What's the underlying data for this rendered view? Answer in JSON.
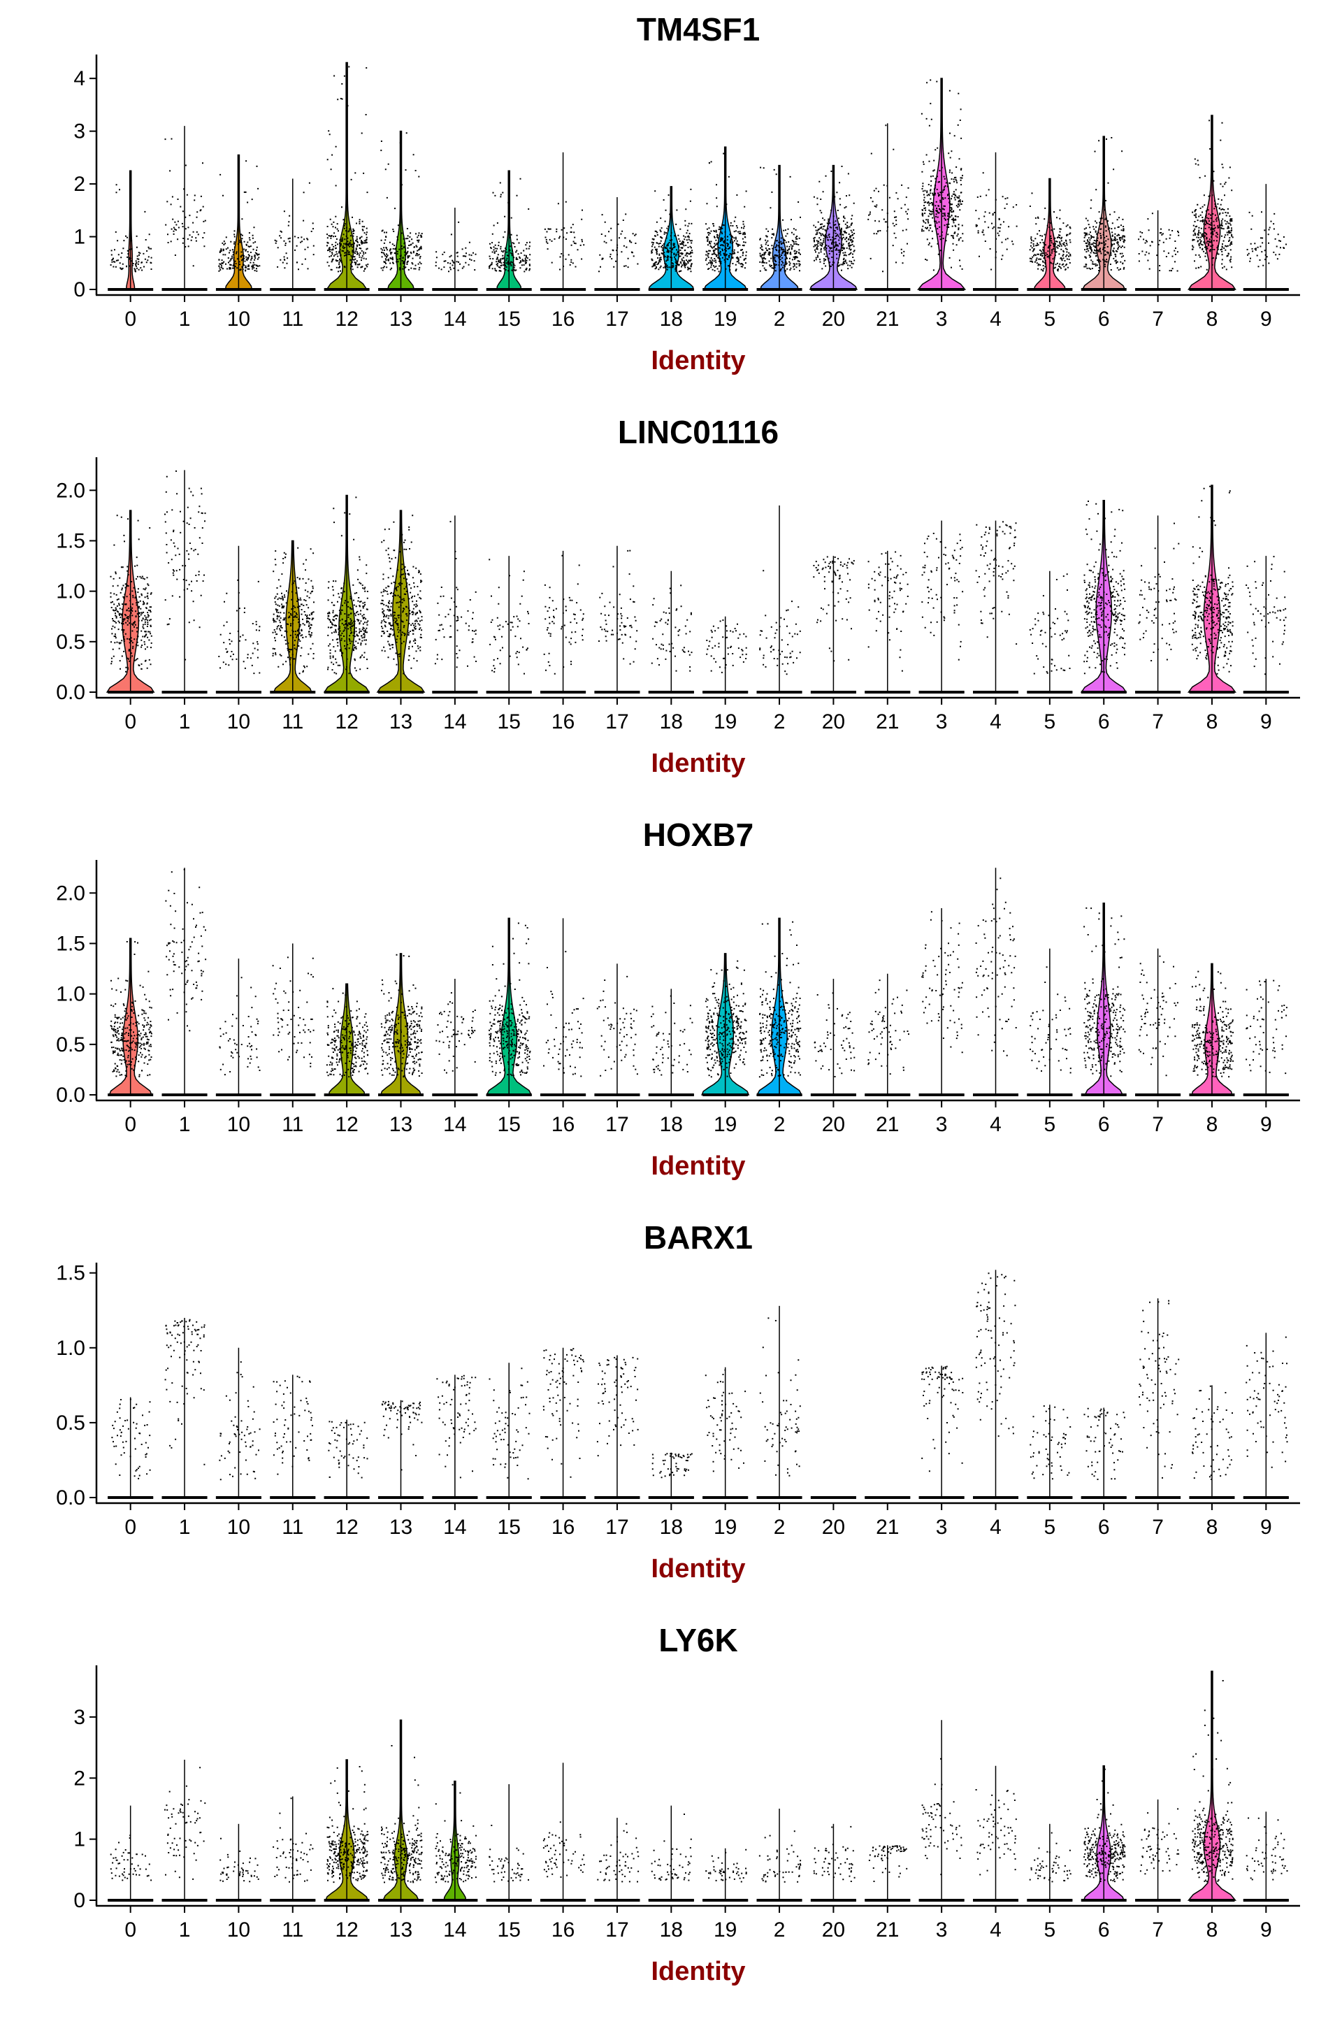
{
  "chart_data": [
    {
      "type": "violin",
      "title": "TM4SF1",
      "xlabel": "Identity",
      "ylabel": "",
      "ylim": [
        0,
        4.4
      ],
      "yticks": [
        0,
        1,
        2,
        3,
        4
      ],
      "categories": [
        "0",
        "1",
        "10",
        "11",
        "12",
        "13",
        "14",
        "15",
        "16",
        "17",
        "18",
        "19",
        "2",
        "20",
        "21",
        "3",
        "4",
        "5",
        "6",
        "7",
        "8",
        "9"
      ],
      "max": [
        2.25,
        3.1,
        2.55,
        2.1,
        4.3,
        3.0,
        1.55,
        2.25,
        2.6,
        1.75,
        1.95,
        2.7,
        2.35,
        2.35,
        3.15,
        4.0,
        2.6,
        2.1,
        2.9,
        1.5,
        3.3,
        2.0
      ],
      "median_expressed": [
        0.6,
        1.3,
        0.6,
        0.8,
        0.8,
        0.7,
        0.6,
        0.55,
        0.8,
        0.8,
        0.7,
        0.8,
        0.65,
        0.9,
        1.3,
        1.6,
        1.2,
        0.75,
        0.85,
        0.8,
        1.1,
        0.8
      ],
      "density_scale": [
        0.15,
        0,
        0.55,
        0,
        0.85,
        0.55,
        0,
        0.5,
        0,
        0,
        0.95,
        0.9,
        0.8,
        1.0,
        0,
        1.0,
        0,
        0.65,
        0.9,
        0,
        1.0,
        0
      ],
      "colors": [
        "#F8766D",
        "#E88526",
        "#D39200",
        "#B79F00",
        "#93AA00",
        "#5EB300",
        "#00BA38",
        "#00BF74",
        "#00C19F",
        "#00BFC4",
        "#00B9E3",
        "#00ADFA",
        "#619CFF",
        "#AE87FF",
        "#DB72FB",
        "#F564E3",
        "#FF61C3",
        "#FF6C90",
        "#E8A0A0",
        "#C0C0C0",
        "#FF6699",
        "#999999"
      ]
    },
    {
      "type": "violin",
      "title": "LINC01116",
      "xlabel": "Identity",
      "ylabel": "",
      "ylim": [
        0,
        2.3
      ],
      "yticks": [
        0.0,
        0.5,
        1.0,
        1.5,
        2.0
      ],
      "categories": [
        "0",
        "1",
        "10",
        "11",
        "12",
        "13",
        "14",
        "15",
        "16",
        "17",
        "18",
        "19",
        "2",
        "20",
        "21",
        "3",
        "4",
        "5",
        "6",
        "7",
        "8",
        "9"
      ],
      "max": [
        1.8,
        2.2,
        1.45,
        1.5,
        1.95,
        1.8,
        1.75,
        1.35,
        1.4,
        1.45,
        1.2,
        0.75,
        1.85,
        1.35,
        1.4,
        1.7,
        1.7,
        1.2,
        1.9,
        1.75,
        2.05,
        1.35
      ],
      "median_expressed": [
        0.7,
        1.3,
        0.45,
        0.7,
        0.65,
        0.8,
        0.6,
        0.5,
        0.65,
        0.65,
        0.55,
        0.45,
        0.5,
        1.1,
        1.0,
        1.1,
        1.3,
        0.5,
        0.8,
        0.85,
        0.75,
        0.7
      ],
      "density_scale": [
        1.0,
        0,
        0,
        0.8,
        0.95,
        1.0,
        0,
        0,
        0,
        0,
        0,
        0,
        0,
        0,
        0,
        0,
        0,
        0,
        0.95,
        0,
        1.0,
        0
      ],
      "colors": [
        "#F8766D",
        "#E88526",
        "#D39200",
        "#B79F00",
        "#93AA00",
        "#A3A500",
        "#00BA38",
        "#00BF74",
        "#00C19F",
        "#00BFC4",
        "#00B9E3",
        "#00ADFA",
        "#619CFF",
        "#AE87FF",
        "#DB72FB",
        "#9590FF",
        "#FF61C3",
        "#FF6C90",
        "#E76BF3",
        "#C0C0C0",
        "#FF62BC",
        "#999999"
      ]
    },
    {
      "type": "violin",
      "title": "HOXB7",
      "xlabel": "Identity",
      "ylabel": "",
      "ylim": [
        0,
        2.3
      ],
      "yticks": [
        0.0,
        0.5,
        1.0,
        1.5,
        2.0
      ],
      "categories": [
        "0",
        "1",
        "10",
        "11",
        "12",
        "13",
        "14",
        "15",
        "16",
        "17",
        "18",
        "19",
        "2",
        "20",
        "21",
        "3",
        "4",
        "5",
        "6",
        "7",
        "8",
        "9"
      ],
      "max": [
        1.55,
        2.25,
        1.35,
        1.5,
        1.1,
        1.4,
        1.15,
        1.75,
        1.75,
        1.3,
        1.05,
        1.4,
        1.75,
        1.15,
        1.2,
        1.85,
        2.25,
        1.45,
        1.9,
        1.45,
        1.3,
        1.15
      ],
      "median_expressed": [
        0.55,
        1.3,
        0.45,
        0.75,
        0.5,
        0.55,
        0.6,
        0.55,
        0.55,
        0.6,
        0.5,
        0.6,
        0.6,
        0.5,
        0.6,
        1.0,
        1.2,
        0.55,
        0.65,
        0.8,
        0.5,
        0.65
      ],
      "density_scale": [
        0.9,
        0,
        0,
        0,
        0.75,
        0.85,
        0,
        0.95,
        0,
        0,
        0,
        1.0,
        0.95,
        0,
        0,
        0,
        0,
        0,
        0.8,
        0,
        0.85,
        0
      ],
      "colors": [
        "#F8766D",
        "#E88526",
        "#D39200",
        "#B79F00",
        "#93AA00",
        "#A3A500",
        "#00BA38",
        "#00BF7D",
        "#00C19F",
        "#00BFC4",
        "#00B9E3",
        "#00BFC4",
        "#00B0F6",
        "#AE87FF",
        "#DB72FB",
        "#9590FF",
        "#FF61C3",
        "#FF6C90",
        "#E76BF3",
        "#C0C0C0",
        "#FF62BC",
        "#999999"
      ]
    },
    {
      "type": "violin",
      "title": "BARX1",
      "xlabel": "Identity",
      "ylabel": "",
      "ylim": [
        0,
        1.55
      ],
      "yticks": [
        0.0,
        0.5,
        1.0,
        1.5
      ],
      "categories": [
        "0",
        "1",
        "10",
        "11",
        "12",
        "13",
        "14",
        "15",
        "16",
        "17",
        "18",
        "19",
        "2",
        "20",
        "21",
        "3",
        "4",
        "5",
        "6",
        "7",
        "8",
        "9"
      ],
      "max": [
        0.67,
        1.2,
        1.0,
        0.82,
        0.52,
        0.65,
        0.82,
        0.9,
        1.0,
        0.95,
        0.3,
        0.87,
        1.28,
        0,
        0,
        0.88,
        1.52,
        0.62,
        0.6,
        1.33,
        0.75,
        1.1
      ],
      "median_expressed": [
        0.4,
        1.0,
        0.4,
        0.5,
        0.35,
        0.6,
        0.6,
        0.45,
        0.8,
        0.7,
        0.25,
        0.5,
        0.45,
        0,
        0,
        0.8,
        1.05,
        0.35,
        0.45,
        0.75,
        0.4,
        0.6
      ],
      "density_scale": [
        0,
        0,
        0,
        0,
        0,
        0,
        0,
        0,
        0,
        0,
        0,
        0,
        0,
        0,
        0,
        0,
        0,
        0,
        0,
        0,
        0,
        0
      ],
      "colors": [
        "#F8766D",
        "#E88526",
        "#D39200",
        "#B79F00",
        "#93AA00",
        "#A3A500",
        "#00BA38",
        "#00BF7D",
        "#00C19F",
        "#00BFC4",
        "#00B9E3",
        "#00BFC4",
        "#00B0F6",
        "#AE87FF",
        "#DB72FB",
        "#9590FF",
        "#FF61C3",
        "#FF6C90",
        "#E76BF3",
        "#C0C0C0",
        "#FF62BC",
        "#999999"
      ]
    },
    {
      "type": "violin",
      "title": "LY6K",
      "xlabel": "Identity",
      "ylabel": "",
      "ylim": [
        0,
        3.8
      ],
      "yticks": [
        0,
        1,
        2,
        3
      ],
      "categories": [
        "0",
        "1",
        "10",
        "11",
        "12",
        "13",
        "14",
        "15",
        "16",
        "17",
        "18",
        "19",
        "2",
        "20",
        "21",
        "3",
        "4",
        "5",
        "6",
        "7",
        "8",
        "9"
      ],
      "max": [
        1.55,
        2.3,
        1.25,
        1.7,
        2.3,
        2.95,
        1.95,
        1.9,
        2.25,
        1.35,
        1.55,
        0.85,
        1.5,
        1.25,
        0.9,
        2.95,
        2.2,
        1.25,
        2.2,
        1.65,
        3.75,
        1.45
      ],
      "median_expressed": [
        0.55,
        1.2,
        0.45,
        0.7,
        0.75,
        0.7,
        0.65,
        0.5,
        0.8,
        0.6,
        0.5,
        0.45,
        0.5,
        0.6,
        0.9,
        1.2,
        1.1,
        0.5,
        0.75,
        0.8,
        0.9,
        0.7
      ],
      "density_scale": [
        0,
        0,
        0,
        0,
        0.9,
        0.75,
        0.45,
        0,
        0,
        0,
        0,
        0,
        0,
        0,
        0,
        0,
        0,
        0,
        0.85,
        0,
        1.0,
        0
      ],
      "colors": [
        "#F8766D",
        "#E88526",
        "#D39200",
        "#B79F00",
        "#A3A500",
        "#93AA00",
        "#5EB300",
        "#00BF7D",
        "#00C19F",
        "#00BFC4",
        "#00B9E3",
        "#00BFC4",
        "#00B0F6",
        "#AE87FF",
        "#DB72FB",
        "#9590FF",
        "#FF61C3",
        "#FF6C90",
        "#E76BF3",
        "#C0C0C0",
        "#FF62BC",
        "#999999"
      ]
    }
  ]
}
